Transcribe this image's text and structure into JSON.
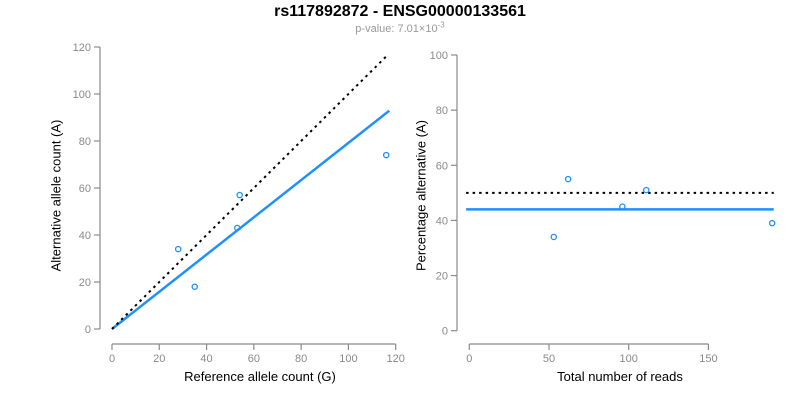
{
  "figure": {
    "title": "rs117892872 - ENSG00000133561",
    "subtitle_prefix": "p-value: 7.01×10",
    "subtitle_exponent": "-3"
  },
  "colors": {
    "accent_blue": "#1E90FF",
    "line_black": "#000000",
    "axis_gray": "#8a8a8a",
    "subtitle_gray": "#9a9a9a"
  },
  "chart_data": [
    {
      "id": "allele-count-scatter",
      "type": "scatter",
      "xlabel": "Reference allele count (G)",
      "ylabel": "Alternative allele count (A)",
      "xlim": [
        0,
        122
      ],
      "ylim": [
        0,
        120
      ],
      "xticks": [
        0,
        20,
        40,
        60,
        80,
        100,
        120
      ],
      "yticks": [
        0,
        20,
        40,
        60,
        80,
        100,
        120
      ],
      "grid": false,
      "legend": "none",
      "point_color": "#1E90FF",
      "points": [
        {
          "x": 28,
          "y": 34
        },
        {
          "x": 35,
          "y": 18
        },
        {
          "x": 53,
          "y": 43
        },
        {
          "x": 54,
          "y": 57
        },
        {
          "x": 116,
          "y": 74
        }
      ],
      "lines": [
        {
          "name": "fit-line",
          "style": "solid",
          "color": "#1E90FF",
          "x1": 0,
          "y1": 0,
          "x2": 117.3,
          "y2": 92.9
        },
        {
          "name": "identity-line",
          "style": "dotted",
          "color": "#000000",
          "x1": 0,
          "y1": 0,
          "x2": 116,
          "y2": 116
        }
      ]
    },
    {
      "id": "percentage-alternative-scatter",
      "type": "scatter",
      "xlabel": "Total number of reads",
      "ylabel": "Percentage alternative (A)",
      "xlim": [
        0,
        195
      ],
      "ylim": [
        0,
        100
      ],
      "xticks": [
        0,
        50,
        100,
        150
      ],
      "yticks": [
        0,
        20,
        40,
        60,
        80,
        100
      ],
      "grid": false,
      "legend": "none",
      "point_color": "#1E90FF",
      "points": [
        {
          "x": 53,
          "y": 34
        },
        {
          "x": 62,
          "y": 55
        },
        {
          "x": 96,
          "y": 45
        },
        {
          "x": 111,
          "y": 51
        },
        {
          "x": 190,
          "y": 39
        }
      ],
      "lines": [
        {
          "name": "mean-percentage-line",
          "style": "solid",
          "color": "#1E90FF",
          "x1": -2,
          "y1": 44,
          "x2": 191,
          "y2": 44
        },
        {
          "name": "expected-50pct-line",
          "style": "dotted",
          "color": "#000000",
          "x1": -2,
          "y1": 50,
          "x2": 191,
          "y2": 50
        }
      ]
    }
  ]
}
